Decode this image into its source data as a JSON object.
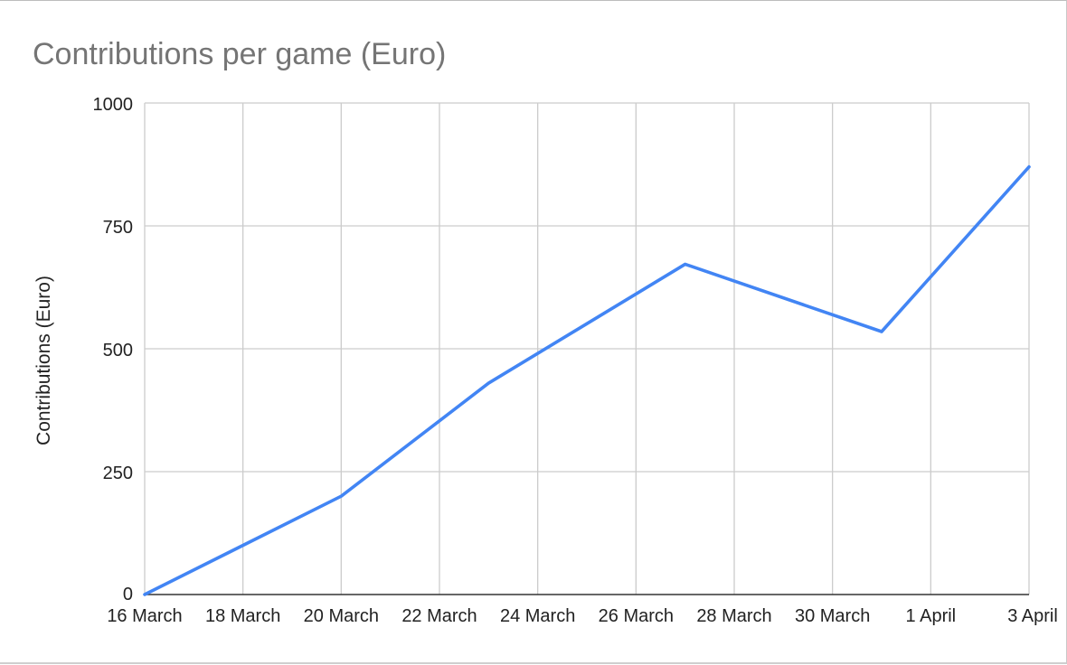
{
  "chart_data": {
    "type": "line",
    "title": "Contributions per game (Euro)",
    "xlabel": "",
    "ylabel": "Contributions (Euro)",
    "ylim": [
      0,
      1000
    ],
    "yticks": [
      0,
      250,
      500,
      750,
      1000
    ],
    "xlim": [
      "2020-03-16",
      "2020-04-03"
    ],
    "xtick_labels": [
      "16 March",
      "18 March",
      "20 March",
      "22 March",
      "24 March",
      "26 March",
      "28 March",
      "30 March",
      "1 April",
      "3 April"
    ],
    "xtick_dates": [
      "2020-03-16",
      "2020-03-18",
      "2020-03-20",
      "2020-03-22",
      "2020-03-24",
      "2020-03-26",
      "2020-03-28",
      "2020-03-30",
      "2020-04-01",
      "2020-04-03"
    ],
    "grid": true,
    "legend": "none",
    "series": [
      {
        "color": "#4285f4",
        "points": [
          {
            "x": "2020-03-16",
            "y": 0
          },
          {
            "x": "2020-03-20",
            "y": 200
          },
          {
            "x": "2020-03-23",
            "y": 430
          },
          {
            "x": "2020-03-27",
            "y": 672
          },
          {
            "x": "2020-03-31",
            "y": 535
          },
          {
            "x": "2020-04-03",
            "y": 870
          }
        ]
      }
    ]
  }
}
